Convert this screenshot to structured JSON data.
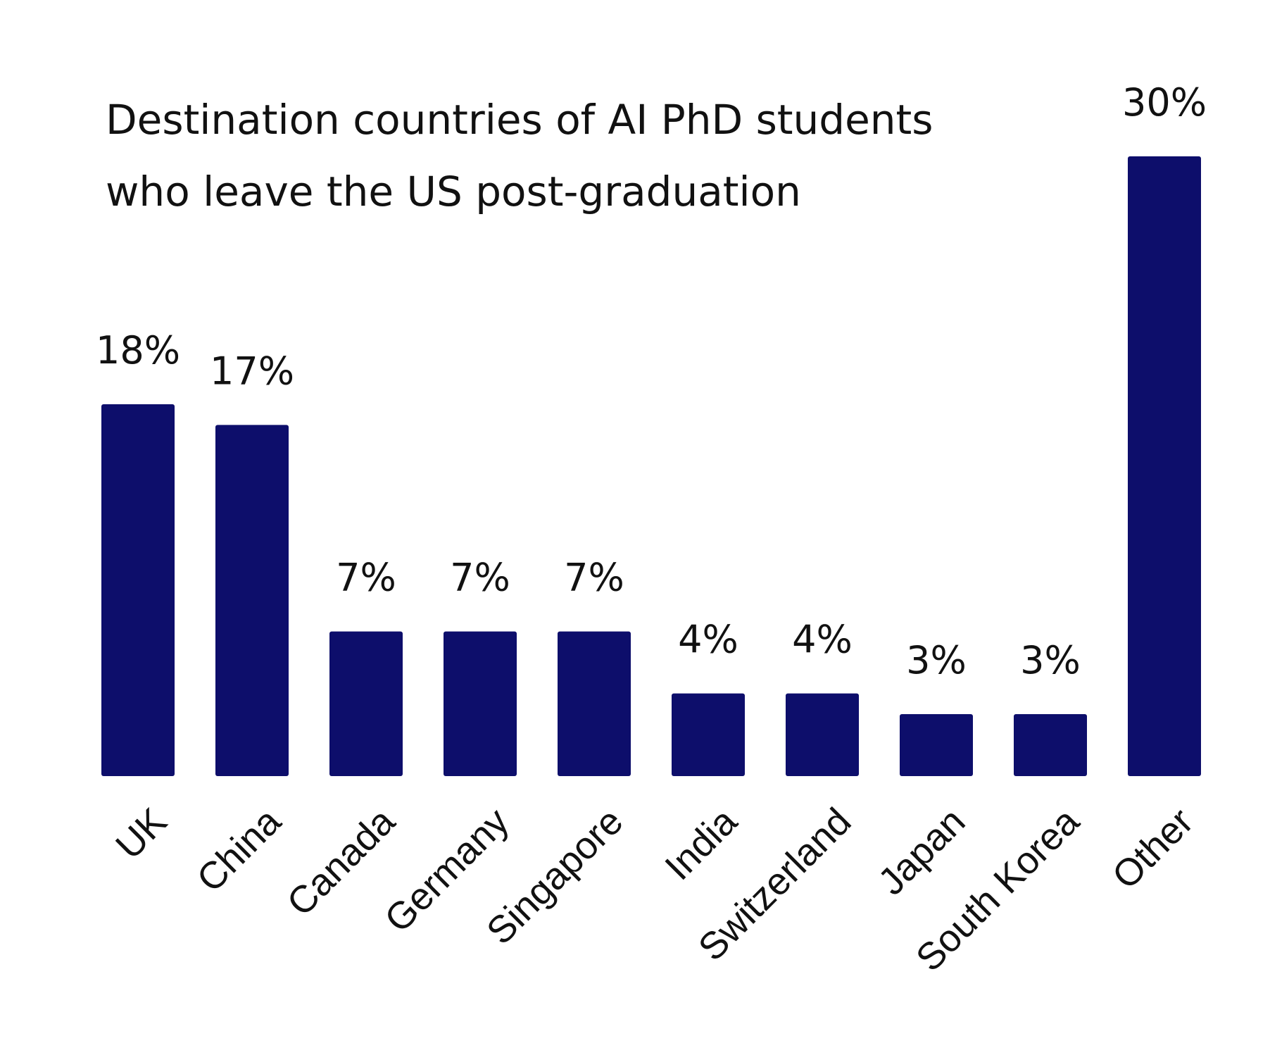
{
  "chart_data": {
    "type": "bar",
    "title_lines": [
      "Destination countries of AI PhD students",
      "who leave the US post-graduation"
    ],
    "categories": [
      "UK",
      "China",
      "Canada",
      "Germany",
      "Singapore",
      "India",
      "Switzerland",
      "Japan",
      "South Korea",
      "Other"
    ],
    "values": [
      18,
      17,
      7,
      7,
      7,
      4,
      4,
      3,
      3,
      30
    ],
    "value_labels": [
      "18%",
      "17%",
      "7%",
      "7%",
      "7%",
      "4%",
      "4%",
      "3%",
      "3%",
      "30%"
    ],
    "xlabel": "",
    "ylabel": "",
    "ylim": [
      0,
      30
    ],
    "grid": false,
    "legend": "none",
    "bar_color": "#0d0e6b"
  }
}
